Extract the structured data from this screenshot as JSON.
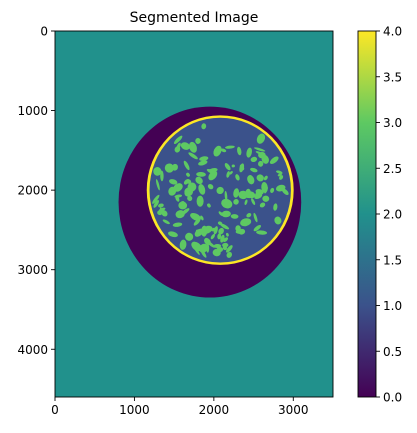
{
  "chart_data": {
    "type": "heatmap",
    "title": "Segmented Image",
    "xlabel": "",
    "ylabel": "",
    "xlim": [
      0,
      3500
    ],
    "ylim": [
      4600,
      0
    ],
    "x_ticks": [
      0,
      1000,
      2000,
      3000
    ],
    "y_ticks": [
      0,
      1000,
      2000,
      3000,
      4000
    ],
    "grid": false,
    "colormap": "viridis",
    "colorbar": {
      "range": [
        0.0,
        4.0
      ],
      "ticks": [
        "0.0",
        "0.5",
        "1.0",
        "1.5",
        "2.0",
        "2.5",
        "3.0",
        "3.5",
        "4.0"
      ],
      "stops": [
        "#440154",
        "#3b528b",
        "#21918c",
        "#5ec962",
        "#fde725"
      ]
    },
    "segments": [
      {
        "class_value": 2,
        "region": "background",
        "color": "#21918c"
      },
      {
        "class_value": 0,
        "region": "dark outer halo",
        "center": [
          1950,
          2150
        ],
        "radius_x": 1150,
        "radius_y": 1200,
        "color": "#440154"
      },
      {
        "class_value": 1,
        "region": "inner disc",
        "center": [
          2080,
          2000
        ],
        "radius_x": 890,
        "radius_y": 910,
        "color": "#3b528b"
      },
      {
        "class_value": 4,
        "region": "bright rim",
        "center": [
          2080,
          2000
        ],
        "radius_x": 925,
        "radius_y": 940,
        "color": "#fde725"
      },
      {
        "class_value": 3,
        "region": "green patches",
        "color": "#5ec962"
      }
    ]
  }
}
